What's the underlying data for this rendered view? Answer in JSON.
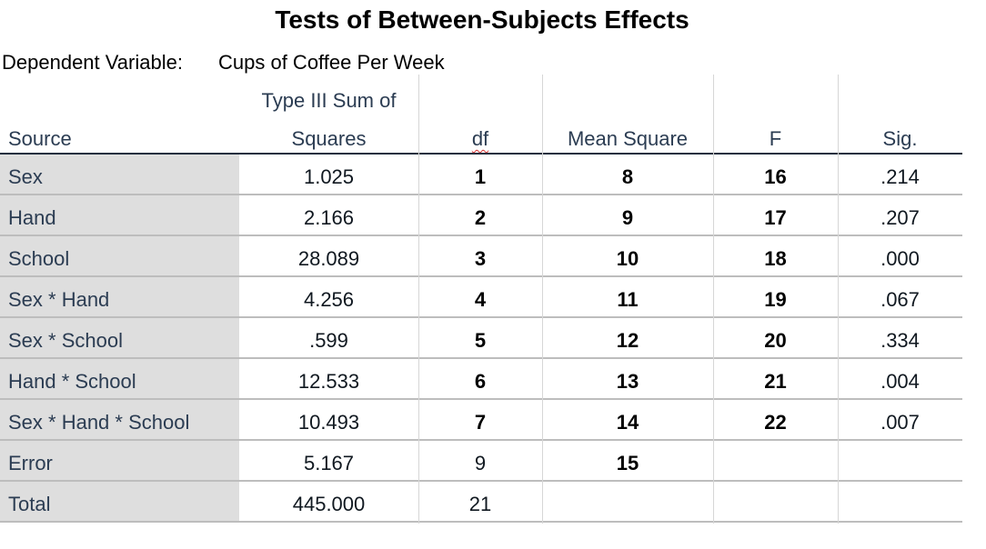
{
  "title": "Tests of Between-Subjects Effects",
  "dependent_variable": {
    "label": "Dependent Variable:",
    "value": "Cups of Coffee Per Week"
  },
  "columns": {
    "source": "Source",
    "ss_line1": "Type III Sum of",
    "ss_line2": "Squares",
    "df": "df",
    "mean_square": "Mean Square",
    "f": "F",
    "sig": "Sig."
  },
  "rows": [
    {
      "source": "Sex",
      "ss": "1.025",
      "df": "1",
      "ms": "8",
      "f": "16",
      "sig": ".214"
    },
    {
      "source": "Hand",
      "ss": "2.166",
      "df": "2",
      "ms": "9",
      "f": "17",
      "sig": ".207"
    },
    {
      "source": "School",
      "ss": "28.089",
      "df": "3",
      "ms": "10",
      "f": "18",
      "sig": ".000"
    },
    {
      "source": "Sex * Hand",
      "ss": "4.256",
      "df": "4",
      "ms": "11",
      "f": "19",
      "sig": ".067"
    },
    {
      "source": "Sex * School",
      "ss": ".599",
      "df": "5",
      "ms": "12",
      "f": "20",
      "sig": ".334"
    },
    {
      "source": "Hand * School",
      "ss": "12.533",
      "df": "6",
      "ms": "13",
      "f": "21",
      "sig": ".004"
    },
    {
      "source": "Sex * Hand * School",
      "ss": "10.493",
      "df": "7",
      "ms": "14",
      "f": "22",
      "sig": ".007"
    },
    {
      "source": "Error",
      "ss": "5.167",
      "df": "9",
      "ms": "15",
      "f": "",
      "sig": ""
    },
    {
      "source": "Total",
      "ss": "445.000",
      "df": "21",
      "ms": "",
      "f": "",
      "sig": ""
    }
  ]
}
